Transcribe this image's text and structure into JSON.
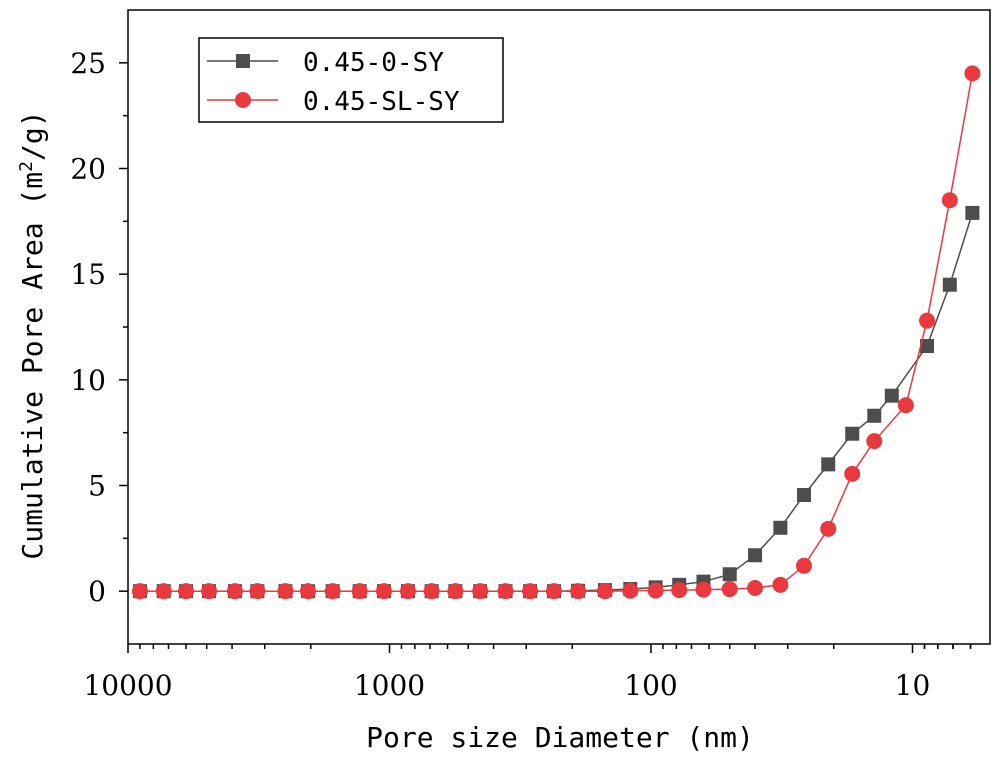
{
  "chart_data": {
    "type": "line",
    "title": "",
    "xlabel": "Pore size Diameter (nm)",
    "ylabel_prefix": "Cumulative Pore Area (m",
    "ylabel_sup": "2",
    "ylabel_suffix": "/g)",
    "x_scale": "log",
    "x_reversed": true,
    "xlim": [
      10000,
      6
    ],
    "ylim": [
      -2.5,
      27.5
    ],
    "x_ticks": [
      10000,
      1000,
      100,
      10
    ],
    "x_tick_labels": [
      "10000",
      "1000",
      "100",
      "10"
    ],
    "y_ticks": [
      0,
      5,
      10,
      15,
      20,
      25
    ],
    "y_tick_labels": [
      "0",
      "5",
      "10",
      "15",
      "20",
      "25"
    ],
    "legend_position": "top-left",
    "x": [
      9000,
      7300,
      6000,
      4900,
      3900,
      3200,
      2500,
      2050,
      1650,
      1300,
      1050,
      850,
      690,
      560,
      450,
      360,
      290,
      235,
      190,
      150,
      120,
      96,
      78,
      63,
      50,
      40,
      32,
      26,
      21,
      17,
      14,
      12,
      10.6,
      8.8,
      7.2,
      5.9
    ],
    "series": [
      {
        "name": "0.45-0-SY",
        "color": "#4d4d4d",
        "marker": "square",
        "values": [
          0,
          0,
          0,
          0,
          0,
          0,
          0,
          0,
          0,
          0,
          0,
          0,
          0,
          0,
          0,
          0,
          0,
          0,
          0.02,
          0.05,
          0.1,
          0.18,
          0.3,
          0.45,
          0.8,
          1.7,
          3.0,
          4.55,
          6.0,
          7.45,
          8.3,
          9.25,
          null,
          11.6,
          14.5,
          17.9
        ]
      },
      {
        "name": "0.45-SL-SY",
        "color": "#e8393f",
        "marker": "circle",
        "values": [
          0,
          0,
          0,
          0,
          0,
          0,
          0,
          0,
          0,
          0,
          0,
          0,
          0,
          0,
          0,
          0,
          0,
          0,
          0,
          0,
          0.02,
          0.03,
          0.05,
          0.07,
          0.1,
          0.15,
          0.3,
          1.2,
          2.95,
          5.55,
          7.1,
          null,
          8.8,
          12.8,
          18.5,
          24.5
        ]
      }
    ]
  }
}
